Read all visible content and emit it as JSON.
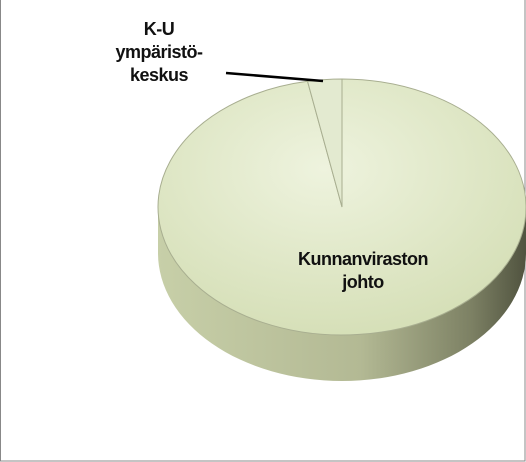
{
  "chart_data": {
    "type": "pie3d",
    "categories": [
      "Kunnanviraston johto",
      "K-U ympäristö-keskus"
    ],
    "values": [
      97,
      3
    ],
    "colors": [
      "#dfe8c6",
      "#e3ead0"
    ]
  }
}
